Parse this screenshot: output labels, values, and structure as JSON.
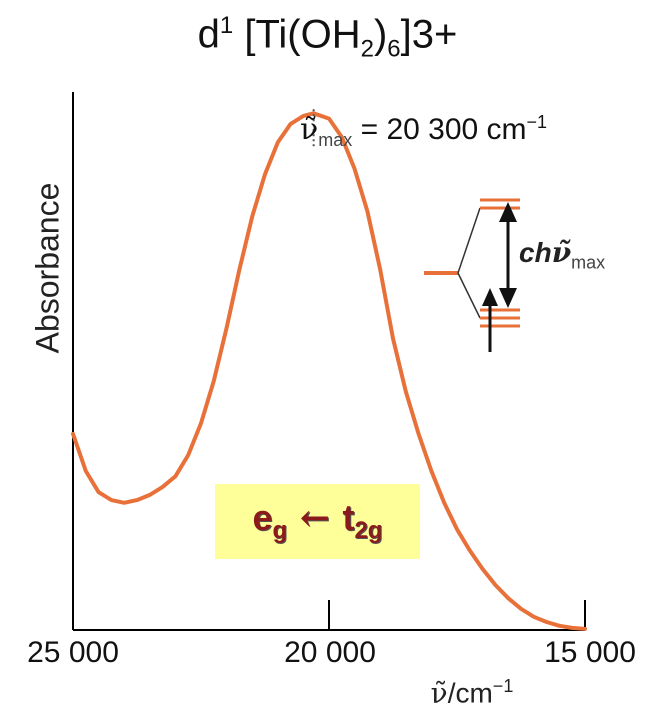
{
  "title": {
    "main": "d",
    "sup1": "1",
    "formula": " [Ti(OH",
    "sub1": "2",
    "close": ")",
    "sub2": "6",
    "charge": "]3+"
  },
  "peak_annotation": {
    "symbol": "ν̃",
    "sub": "max",
    "text": " = 20 300 cm",
    "sup": "−1"
  },
  "energy_diagram_label": {
    "main": "ch",
    "symbol": "ν̃",
    "sub": "max"
  },
  "transition_label": {
    "upper": "e",
    "upper_sub": "g",
    "arrow": " ← ",
    "lower": "t",
    "lower_sub": "2g"
  },
  "colors": {
    "curve": "#e8713a",
    "levels": "#e8713a",
    "axis": "#000000",
    "box": "#ffff99",
    "transition_text": "#8b1a1a"
  },
  "chart_data": {
    "type": "line",
    "title": "d1 [Ti(OH2)6]3+",
    "xlabel_symbol": "ν̃",
    "xlabel_unit": "/cm",
    "xlabel_sup": "−1",
    "ylabel": "Absorbance",
    "xlim": [
      25000,
      15000
    ],
    "x_reversed": true,
    "ylim": [
      0,
      1
    ],
    "x_ticks": [
      "25 000",
      "20 000",
      "15 000"
    ],
    "x_tick_values": [
      25000,
      20000,
      15000
    ],
    "peak_x": 20300,
    "series": [
      {
        "x": [
          25000,
          24750,
          24500,
          24250,
          24000,
          23750,
          23500,
          23250,
          23000,
          22750,
          22500,
          22250,
          22000,
          21750,
          21500,
          21250,
          21000,
          20750,
          20500,
          20300,
          20000,
          19750,
          19500,
          19250,
          19000,
          18750,
          18500,
          18250,
          18000,
          17750,
          17500,
          17250,
          17000,
          16750,
          16500,
          16250,
          16000,
          15750,
          15500,
          15250,
          15000
        ],
        "y": [
          0.37,
          0.3,
          0.26,
          0.245,
          0.24,
          0.245,
          0.255,
          0.27,
          0.29,
          0.33,
          0.39,
          0.47,
          0.57,
          0.68,
          0.78,
          0.86,
          0.92,
          0.955,
          0.97,
          0.975,
          0.965,
          0.93,
          0.87,
          0.79,
          0.68,
          0.55,
          0.45,
          0.37,
          0.3,
          0.24,
          0.19,
          0.15,
          0.115,
          0.085,
          0.06,
          0.04,
          0.025,
          0.015,
          0.008,
          0.004,
          0.002
        ]
      }
    ]
  }
}
